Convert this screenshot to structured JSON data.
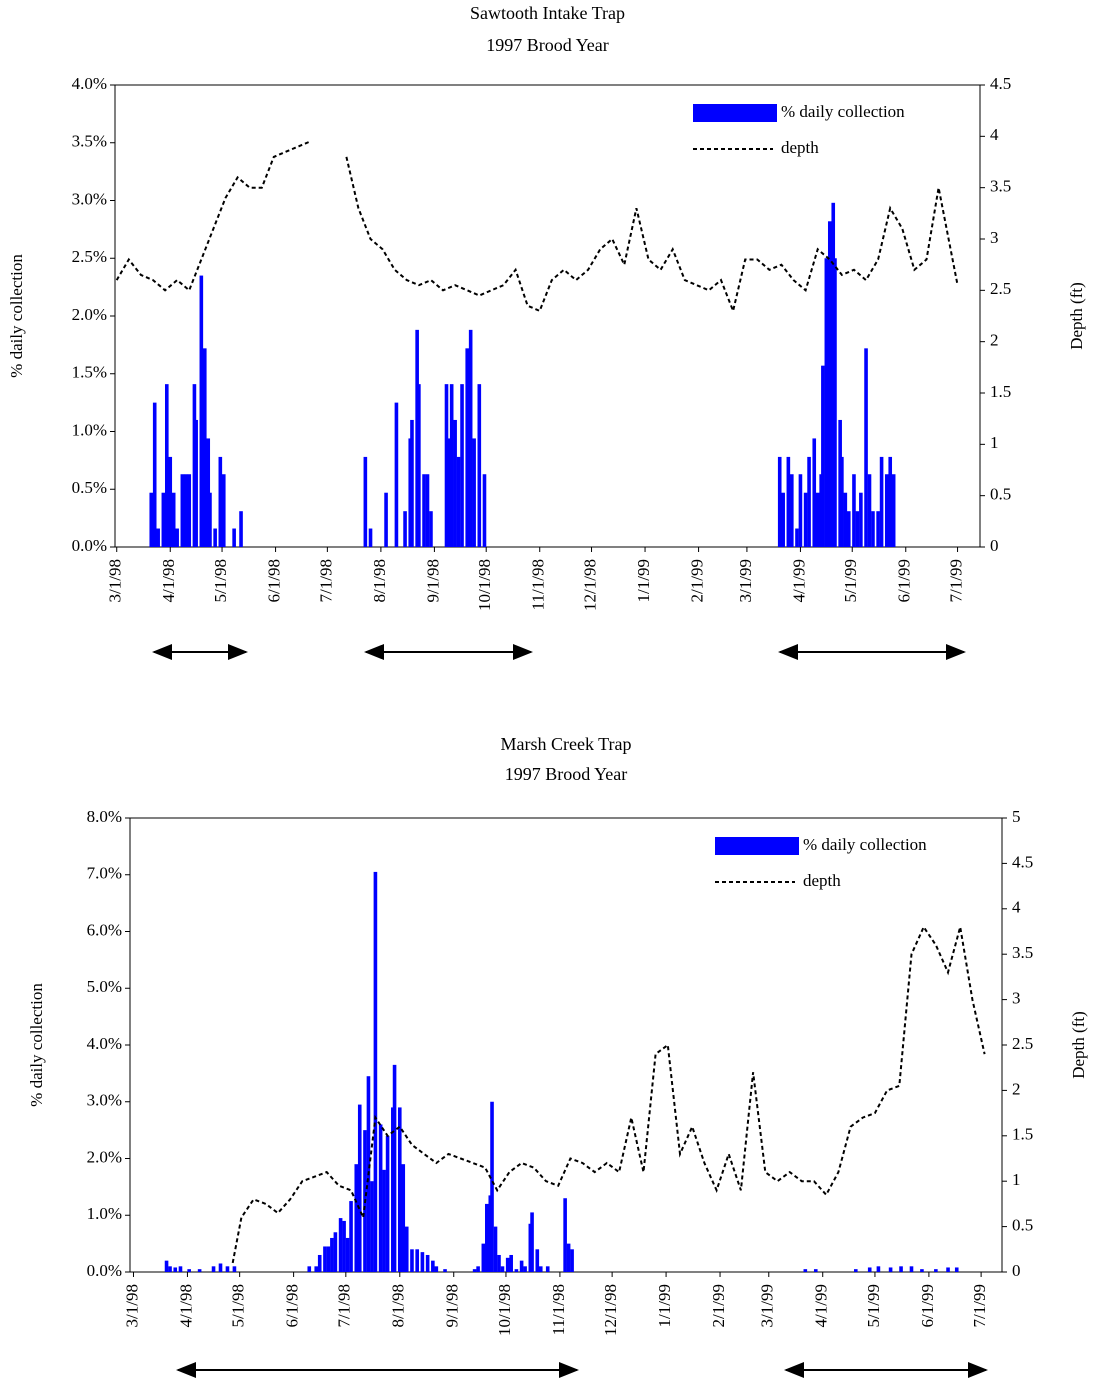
{
  "chart_data": [
    {
      "type": "bar",
      "title": "Sawtooth Intake Trap",
      "subtitle": "1997 Brood Year",
      "ylabel": "% daily collection",
      "y2label": "Depth (ft)",
      "legend": "upper right",
      "xlim": [
        "2/28/98",
        "7/14/99"
      ],
      "xticks": [
        "3/1/98",
        "4/1/98",
        "5/1/98",
        "6/1/98",
        "7/1/98",
        "8/1/98",
        "9/1/98",
        "10/1/98",
        "11/1/98",
        "12/1/98",
        "1/1/99",
        "2/1/99",
        "3/1/99",
        "4/1/99",
        "5/1/99",
        "6/1/99",
        "7/1/99"
      ],
      "ylim": [
        0,
        4
      ],
      "yticks": [
        {
          "value": 0,
          "label": "0.0%"
        },
        {
          "value": 0.5,
          "label": "0.5%"
        },
        {
          "value": 1,
          "label": "1.0%"
        },
        {
          "value": 1.5,
          "label": "1.5%"
        },
        {
          "value": 2,
          "label": "2.0%"
        },
        {
          "value": 2.5,
          "label": "2.5%"
        },
        {
          "value": 3,
          "label": "3.0%"
        },
        {
          "value": 3.5,
          "label": "3.5%"
        },
        {
          "value": 4,
          "label": "4.0%"
        }
      ],
      "y2lim": [
        0,
        4.5
      ],
      "y2ticks": [
        0,
        0.5,
        1,
        1.5,
        2,
        2.5,
        3,
        3.5,
        4,
        4.5
      ],
      "series": [
        {
          "name": "% daily collection",
          "type": "bar",
          "color": "#0000ff",
          "x": [
            "3/21/98",
            "3/23/98",
            "3/25/98",
            "3/28/98",
            "3/30/98",
            "4/1/98",
            "4/3/98",
            "4/5/98",
            "4/8/98",
            "4/10/98",
            "4/12/98",
            "4/15/98",
            "4/16/98",
            "4/19/98",
            "4/21/98",
            "4/23/98",
            "4/24/98",
            "4/27/98",
            "4/30/98",
            "5/2/98",
            "5/8/98",
            "5/12/98",
            "7/23/98",
            "7/26/98",
            "8/4/98",
            "8/10/98",
            "8/15/98",
            "8/18/98",
            "8/19/98",
            "8/22/98",
            "8/23/98",
            "8/26/98",
            "8/28/98",
            "8/30/98",
            "9/8/98",
            "9/9/98",
            "9/11/98",
            "9/13/98",
            "9/15/98",
            "9/17/98",
            "9/20/98",
            "9/22/98",
            "9/24/98",
            "9/27/98",
            "9/30/98",
            "3/20/99",
            "3/22/99",
            "3/25/99",
            "3/27/99",
            "3/30/99",
            "4/1/99",
            "4/4/99",
            "4/6/99",
            "4/9/99",
            "4/11/99",
            "4/13/99",
            "4/14/99",
            "4/16/99",
            "4/18/99",
            "4/20/99",
            "4/21/99",
            "4/24/99",
            "4/25/99",
            "4/27/99",
            "4/29/99",
            "5/2/99",
            "5/4/99",
            "5/6/99",
            "5/9/99",
            "5/11/99",
            "5/13/99",
            "5/16/99",
            "5/18/99",
            "5/21/99",
            "5/23/99",
            "5/25/99"
          ],
          "values": [
            0.47,
            1.25,
            0.16,
            0.47,
            1.41,
            0.78,
            0.47,
            0.16,
            0.63,
            0.63,
            0.63,
            1.41,
            1.1,
            2.35,
            1.72,
            0.94,
            0.47,
            0.16,
            0.78,
            0.63,
            0.16,
            0.31,
            0.78,
            0.16,
            0.47,
            1.25,
            0.31,
            0.94,
            1.1,
            1.88,
            1.41,
            0.63,
            0.63,
            0.31,
            1.41,
            0.94,
            1.41,
            1.1,
            0.78,
            1.41,
            1.72,
            1.88,
            0.94,
            1.41,
            0.63,
            0.78,
            0.47,
            0.78,
            0.63,
            0.16,
            0.63,
            0.47,
            0.78,
            0.94,
            0.47,
            0.63,
            1.57,
            2.5,
            2.82,
            2.98,
            2.5,
            1.1,
            0.78,
            0.47,
            0.31,
            0.63,
            0.31,
            0.47,
            1.72,
            0.63,
            0.31,
            0.31,
            0.78,
            0.63,
            0.78,
            0.63
          ]
        },
        {
          "name": "depth",
          "type": "line",
          "axis": "y2",
          "color": "#000000",
          "x": [
            "3/1/98",
            "3/8/98",
            "3/15/98",
            "3/22/98",
            "3/29/98",
            "4/5/98",
            "4/12/98",
            "4/19/98",
            "4/26/98",
            "5/3/98",
            "5/10/98",
            "5/17/98",
            "5/24/98",
            "5/31/98",
            "6/7/98",
            "6/14/98",
            "6/21/98",
            "6/28/98",
            "7/5/98",
            "7/12/98",
            "7/19/98",
            "7/26/98",
            "8/2/98",
            "8/9/98",
            "8/16/98",
            "8/23/98",
            "8/30/98",
            "9/6/98",
            "9/13/98",
            "9/20/98",
            "9/27/98",
            "10/4/98",
            "10/11/98",
            "10/18/98",
            "10/25/98",
            "11/1/98",
            "11/8/98",
            "11/15/98",
            "11/22/98",
            "11/29/98",
            "12/6/98",
            "12/13/98",
            "12/20/98",
            "12/27/98",
            "1/3/99",
            "1/10/99",
            "1/17/99",
            "1/24/99",
            "1/31/99",
            "2/7/99",
            "2/14/99",
            "2/21/99",
            "2/28/99",
            "3/7/99",
            "3/14/99",
            "3/21/99",
            "3/28/99",
            "4/4/99",
            "4/11/99",
            "4/18/99",
            "4/25/99",
            "5/2/99",
            "5/9/99",
            "5/16/99",
            "5/23/99",
            "5/30/99",
            "6/6/99",
            "6/13/99",
            "6/20/99",
            "6/27/99",
            "7/1/99"
          ],
          "values": [
            2.6,
            2.8,
            2.65,
            2.6,
            2.5,
            2.6,
            2.5,
            2.8,
            3.1,
            3.4,
            3.6,
            3.5,
            3.5,
            3.8,
            3.85,
            3.9,
            3.95,
            null,
            null,
            3.8,
            3.3,
            3.0,
            2.9,
            2.7,
            2.6,
            2.55,
            2.6,
            2.5,
            2.55,
            2.5,
            2.45,
            2.5,
            2.55,
            2.7,
            2.35,
            2.3,
            2.6,
            2.7,
            2.6,
            2.7,
            2.9,
            3.0,
            2.75,
            3.3,
            2.8,
            2.7,
            2.9,
            2.6,
            2.55,
            2.5,
            2.6,
            2.3,
            2.8,
            2.8,
            2.7,
            2.75,
            2.6,
            2.5,
            2.9,
            2.8,
            2.65,
            2.7,
            2.6,
            2.8,
            3.3,
            3.1,
            2.7,
            2.8,
            3.5,
            2.9,
            2.55
          ]
        }
      ]
    },
    {
      "type": "bar",
      "title": "Marsh Creek Trap",
      "subtitle": "1997 Brood Year",
      "ylabel": "% daily collection",
      "y2label": "Depth (ft)",
      "legend": "upper right",
      "xlim": [
        "2/27/98",
        "7/13/99"
      ],
      "xticks": [
        "3/1/98",
        "4/1/98",
        "5/1/98",
        "6/1/98",
        "7/1/98",
        "8/1/98",
        "9/1/98",
        "10/1/98",
        "11/1/98",
        "12/1/98",
        "1/1/99",
        "2/1/99",
        "3/1/99",
        "4/1/99",
        "5/1/99",
        "6/1/99",
        "7/1/99"
      ],
      "ylim": [
        0,
        8
      ],
      "yticks": [
        {
          "value": 0,
          "label": "0.0%"
        },
        {
          "value": 1,
          "label": "1.0%"
        },
        {
          "value": 2,
          "label": "2.0%"
        },
        {
          "value": 3,
          "label": "3.0%"
        },
        {
          "value": 4,
          "label": "4.0%"
        },
        {
          "value": 5,
          "label": "5.0%"
        },
        {
          "value": 6,
          "label": "6.0%"
        },
        {
          "value": 7,
          "label": "7.0%"
        },
        {
          "value": 8,
          "label": "8.0%"
        }
      ],
      "y2lim": [
        0,
        5
      ],
      "y2ticks": [
        0,
        0.5,
        1,
        1.5,
        2,
        2.5,
        3,
        3.5,
        4,
        4.5,
        5
      ],
      "series": [
        {
          "name": "% daily collection",
          "type": "bar",
          "color": "#0000ff",
          "x": [
            "3/20/98",
            "3/22/98",
            "3/25/98",
            "3/28/98",
            "4/2/98",
            "4/8/98",
            "4/16/98",
            "4/20/98",
            "4/24/98",
            "4/28/98",
            "6/10/98",
            "6/14/98",
            "6/16/98",
            "6/19/98",
            "6/21/98",
            "6/23/98",
            "6/25/98",
            "6/28/98",
            "6/30/98",
            "7/2/98",
            "7/4/98",
            "7/7/98",
            "7/9/98",
            "7/12/98",
            "7/14/98",
            "7/16/98",
            "7/18/98",
            "7/21/98",
            "7/23/98",
            "7/25/98",
            "7/28/98",
            "7/29/98",
            "8/1/98",
            "8/3/98",
            "8/5/98",
            "8/8/98",
            "8/11/98",
            "8/14/98",
            "8/17/98",
            "8/20/98",
            "8/22/98",
            "8/27/98",
            "9/13/98",
            "9/15/98",
            "9/18/98",
            "9/20/98",
            "9/22/98",
            "9/23/98",
            "9/25/98",
            "9/27/98",
            "9/29/98",
            "10/2/98",
            "10/4/98",
            "10/7/98",
            "10/10/98",
            "10/12/98",
            "10/15/98",
            "10/16/98",
            "10/19/98",
            "10/21/98",
            "10/25/98",
            "11/4/98",
            "11/6/98",
            "11/8/98",
            "3/22/99",
            "3/28/99",
            "4/20/99",
            "4/28/99",
            "5/3/99",
            "5/10/99",
            "5/16/99",
            "5/22/99",
            "5/28/99",
            "6/5/99",
            "6/12/99",
            "6/17/99"
          ],
          "values": [
            0.2,
            0.1,
            0.08,
            0.1,
            0.05,
            0.05,
            0.1,
            0.15,
            0.1,
            0.1,
            0.1,
            0.1,
            0.3,
            0.45,
            0.45,
            0.6,
            0.7,
            0.95,
            0.9,
            0.6,
            1.25,
            1.9,
            2.95,
            2.5,
            3.45,
            1.6,
            7.05,
            2.6,
            1.8,
            2.4,
            2.9,
            3.65,
            2.9,
            1.9,
            0.8,
            0.4,
            0.4,
            0.35,
            0.3,
            0.2,
            0.1,
            0.05,
            0.05,
            0.1,
            0.5,
            1.2,
            1.35,
            3.0,
            0.8,
            0.3,
            0.1,
            0.25,
            0.3,
            0.05,
            0.2,
            0.1,
            0.85,
            1.05,
            0.4,
            0.1,
            0.1,
            1.3,
            0.5,
            0.4,
            0.05,
            0.05,
            0.05,
            0.08,
            0.1,
            0.08,
            0.1,
            0.1,
            0.05,
            0.05,
            0.08,
            0.08
          ]
        },
        {
          "name": "depth",
          "type": "line",
          "axis": "y2",
          "color": "#000000",
          "x": [
            "4/27/98",
            "5/2/98",
            "5/9/98",
            "5/16/98",
            "5/23/98",
            "5/30/98",
            "6/6/98",
            "6/13/98",
            "6/20/98",
            "6/27/98",
            "7/4/98",
            "7/11/98",
            "7/18/98",
            "7/25/98",
            "8/1/98",
            "8/8/98",
            "8/15/98",
            "8/22/98",
            "8/29/98",
            "9/5/98",
            "9/12/98",
            "9/19/98",
            "9/26/98",
            "10/3/98",
            "10/10/98",
            "10/17/98",
            "10/24/98",
            "10/31/98",
            "11/7/98",
            "11/14/98",
            "11/21/98",
            "11/28/98",
            "12/5/98",
            "12/12/98",
            "12/19/98",
            "12/26/98",
            "1/2/99",
            "1/9/99",
            "1/16/99",
            "1/23/99",
            "1/30/99",
            "2/6/99",
            "2/13/99",
            "2/20/99",
            "2/27/99",
            "3/6/99",
            "3/13/99",
            "3/20/99",
            "3/27/99",
            "4/3/99",
            "4/10/99",
            "4/17/99",
            "4/24/99",
            "5/1/99",
            "5/8/99",
            "5/15/99",
            "5/22/99",
            "5/29/99",
            "6/5/99",
            "6/12/99",
            "6/19/99",
            "6/26/99",
            "7/3/99"
          ],
          "values": [
            0.1,
            0.6,
            0.8,
            0.75,
            0.65,
            0.8,
            1.0,
            1.05,
            1.1,
            0.95,
            0.9,
            0.6,
            1.7,
            1.5,
            1.6,
            1.4,
            1.3,
            1.2,
            1.3,
            1.25,
            1.2,
            1.15,
            0.9,
            1.1,
            1.2,
            1.15,
            1.0,
            0.95,
            1.25,
            1.2,
            1.1,
            1.2,
            1.1,
            1.7,
            1.1,
            2.4,
            2.5,
            1.3,
            1.6,
            1.2,
            0.9,
            1.3,
            0.9,
            2.2,
            1.1,
            1.0,
            1.1,
            1.0,
            1.0,
            0.85,
            1.1,
            1.6,
            1.7,
            1.75,
            2.0,
            2.05,
            3.5,
            3.8,
            3.6,
            3.3,
            3.8,
            3.0,
            2.4
          ]
        }
      ]
    }
  ]
}
